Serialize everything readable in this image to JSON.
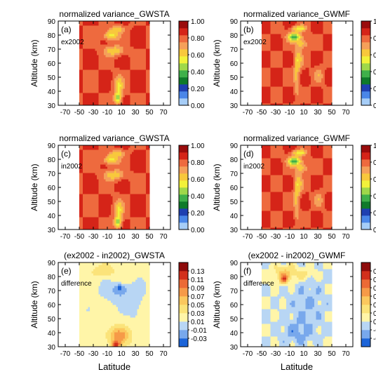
{
  "figure": {
    "ylabel": "Altitude (km)",
    "xlabel": "Latitude",
    "x_ticks": [
      -70,
      -50,
      -30,
      -10,
      10,
      30,
      50,
      70
    ],
    "y_ticks": [
      30,
      40,
      50,
      60,
      70,
      80,
      90
    ],
    "xlim": [
      -80,
      80
    ],
    "ylim": [
      30,
      90
    ]
  },
  "panels": [
    {
      "tag": "(a)",
      "title": "normalized variance_GWSTA",
      "note": "ex2002",
      "kind": "var",
      "pattern": "sta"
    },
    {
      "tag": "(b)",
      "title": "normalized variance_GWMF",
      "note": "ex2002",
      "kind": "var",
      "pattern": "mf"
    },
    {
      "tag": "(c)",
      "title": "normalized variance_GWSTA",
      "note": "in2002",
      "kind": "var",
      "pattern": "sta"
    },
    {
      "tag": "(d)",
      "title": "normalized variance_GWMF",
      "note": "in2002",
      "kind": "var",
      "pattern": "mf"
    },
    {
      "tag": "(e)",
      "title": "(ex2002 - in2002)_GWSTA",
      "note": "difference",
      "kind": "diff",
      "pattern": "dsta"
    },
    {
      "tag": "(f)",
      "title": "(ex2002 - in2002)_GWMF",
      "note": "difference",
      "kind": "diff",
      "pattern": "dmf"
    }
  ],
  "colorbars": {
    "var": {
      "labels": [
        "1.00",
        "0.80",
        "0.60",
        "0.40",
        "0.20",
        "0.00"
      ],
      "levels": [
        0.0,
        0.1,
        0.2,
        0.3,
        0.4,
        0.5,
        0.6,
        0.7,
        0.8,
        0.9,
        1.0
      ],
      "colors": [
        "#a6cdf7",
        "#4a86e8",
        "#1f3fb0",
        "#0f7a2a",
        "#3fb04a",
        "#9fd84a",
        "#f2f23a",
        "#f8c83c",
        "#f5a05a",
        "#ee6a3e",
        "#d52418",
        "#9a0c0c"
      ]
    },
    "diff": {
      "labels": [
        "0.13",
        "0.11",
        "0.09",
        "0.07",
        "0.05",
        "0.03",
        "0.01",
        "-0.01",
        "-0.03"
      ],
      "levels": [
        -0.03,
        -0.01,
        0.01,
        0.03,
        0.05,
        0.07,
        0.09,
        0.11,
        0.13
      ],
      "colors": [
        "#1c64d8",
        "#78a8ec",
        "#b8d6f4",
        "#fff5a8",
        "#fbe37a",
        "#fbc85e",
        "#f69a48",
        "#ec6a36",
        "#d2301c",
        "#8e0b0b"
      ]
    }
  },
  "chart_data": [
    {
      "type": "heatmap",
      "title": "normalized variance_GWSTA",
      "panel": "(a)",
      "note": "ex2002",
      "xlabel": "",
      "ylabel": "Altitude (km)",
      "xlim": [
        -80,
        80
      ],
      "ylim": [
        30,
        90
      ],
      "data_lat_range": [
        -50,
        50
      ],
      "zlim": [
        0,
        1
      ]
    },
    {
      "type": "heatmap",
      "title": "normalized variance_GWMF",
      "panel": "(b)",
      "note": "ex2002",
      "xlabel": "",
      "ylabel": "Altitude (km)",
      "xlim": [
        -80,
        80
      ],
      "ylim": [
        30,
        90
      ],
      "data_lat_range": [
        -50,
        50
      ],
      "zlim": [
        0,
        1
      ]
    },
    {
      "type": "heatmap",
      "title": "normalized variance_GWSTA",
      "panel": "(c)",
      "note": "in2002",
      "xlabel": "",
      "ylabel": "Altitude (km)",
      "xlim": [
        -80,
        80
      ],
      "ylim": [
        30,
        90
      ],
      "data_lat_range": [
        -50,
        50
      ],
      "zlim": [
        0,
        1
      ]
    },
    {
      "type": "heatmap",
      "title": "normalized variance_GWMF",
      "panel": "(d)",
      "note": "in2002",
      "xlabel": "",
      "ylabel": "Altitude (km)",
      "xlim": [
        -80,
        80
      ],
      "ylim": [
        30,
        90
      ],
      "data_lat_range": [
        -50,
        50
      ],
      "zlim": [
        0,
        1
      ]
    },
    {
      "type": "heatmap",
      "title": "(ex2002 - in2002)_GWSTA",
      "panel": "(e)",
      "note": "difference",
      "xlabel": "Latitude",
      "ylabel": "Altitude (km)",
      "xlim": [
        -80,
        80
      ],
      "ylim": [
        30,
        90
      ],
      "data_lat_range": [
        -50,
        50
      ],
      "zlim": [
        -0.03,
        0.13
      ]
    },
    {
      "type": "heatmap",
      "title": "(ex2002 - in2002)_GWMF",
      "panel": "(f)",
      "note": "difference",
      "xlabel": "Latitude",
      "ylabel": "Altitude (km)",
      "xlim": [
        -80,
        80
      ],
      "ylim": [
        30,
        90
      ],
      "data_lat_range": [
        -50,
        50
      ],
      "zlim": [
        -0.03,
        0.13
      ]
    }
  ]
}
